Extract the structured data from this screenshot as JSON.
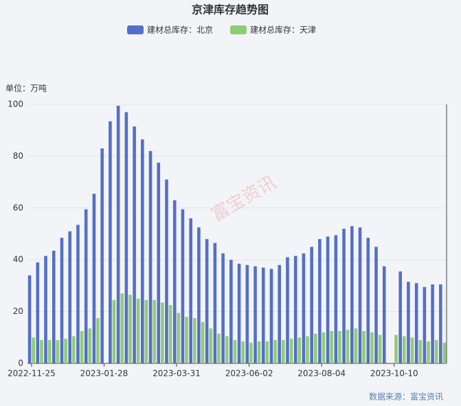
{
  "chart_data": {
    "type": "bar",
    "title": "京津库存趋势图",
    "unit_label": "单位：万吨",
    "source": "数据来源：富宝资讯",
    "watermark": "富宝资讯",
    "categories": [
      "2022-11-25",
      null,
      null,
      null,
      null,
      null,
      null,
      null,
      null,
      "2023-01-28",
      null,
      null,
      null,
      null,
      null,
      null,
      null,
      null,
      "2023-03-31",
      null,
      null,
      null,
      null,
      null,
      null,
      null,
      null,
      "2023-06-02",
      null,
      null,
      null,
      null,
      null,
      null,
      null,
      null,
      "2023-08-04",
      null,
      null,
      null,
      null,
      null,
      null,
      null,
      null,
      "2023-10-10",
      null,
      null,
      null,
      null,
      null,
      null
    ],
    "series": [
      {
        "name": "建材总库存：北京",
        "color": "#5470c6",
        "values": [
          34,
          39,
          41.5,
          43.5,
          48.5,
          51,
          53.5,
          59.5,
          65.5,
          83,
          93.5,
          99.5,
          97,
          91.5,
          86.5,
          82,
          77.5,
          71,
          63,
          59.5,
          56,
          52.5,
          48,
          46.5,
          42.5,
          40,
          38.5,
          38,
          37.5,
          37,
          36.5,
          38,
          41,
          41.5,
          42.5,
          45,
          48,
          49,
          49.5,
          52,
          53,
          52.5,
          48.5,
          45,
          37.5,
          null,
          35.5,
          31.5,
          31,
          29.5,
          30.5,
          30.5
        ]
      },
      {
        "name": "建材总库存：天津",
        "color": "#91cc75",
        "values": [
          10,
          9,
          9,
          9,
          9.5,
          10.5,
          12.5,
          13.5,
          17.5,
          null,
          24.5,
          27,
          26.5,
          25,
          24.5,
          24.5,
          23.5,
          22.5,
          19.5,
          18,
          17.5,
          16,
          13.5,
          11.5,
          10.5,
          9,
          8.5,
          8,
          8.5,
          8.5,
          9,
          9,
          9.5,
          10,
          10.5,
          11.5,
          12,
          12.5,
          12.5,
          13,
          13.5,
          12.5,
          12,
          11,
          null,
          11,
          10.5,
          10,
          9,
          8.5,
          9,
          8
        ]
      }
    ],
    "ylim": [
      0,
      100
    ],
    "yticks": [
      0,
      20,
      40,
      60,
      80,
      100
    ],
    "grid": true
  }
}
